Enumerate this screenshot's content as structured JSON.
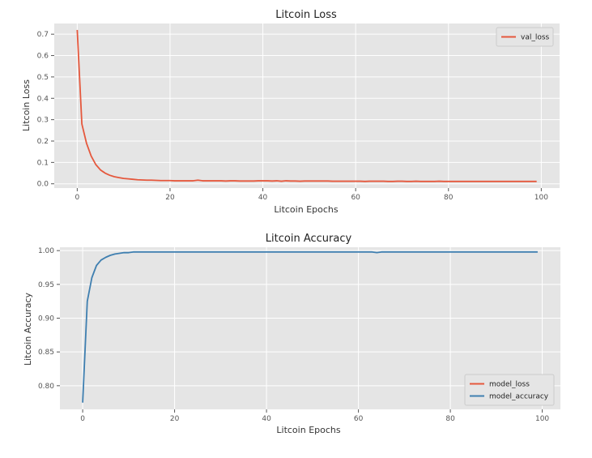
{
  "chart_data": [
    {
      "type": "line",
      "title": "Litcoin Loss",
      "xlabel": "Litcoin Epochs",
      "ylabel": "Litcoin Loss",
      "xlim": [
        -4.95,
        103.95
      ],
      "ylim": [
        -0.02,
        0.75
      ],
      "xticks": [
        0,
        20,
        40,
        60,
        80,
        100
      ],
      "yticks": [
        0.0,
        0.1,
        0.2,
        0.3,
        0.4,
        0.5,
        0.6,
        0.7
      ],
      "ytick_decimals": 1,
      "grid": true,
      "legend_position": "top-right",
      "series": [
        {
          "name": "val_loss",
          "color": "#e5583d",
          "x_start": 0,
          "values": [
            0.72,
            0.28,
            0.19,
            0.13,
            0.09,
            0.065,
            0.05,
            0.04,
            0.033,
            0.029,
            0.025,
            0.023,
            0.021,
            0.019,
            0.018,
            0.017,
            0.017,
            0.016,
            0.015,
            0.015,
            0.015,
            0.014,
            0.014,
            0.014,
            0.014,
            0.014,
            0.017,
            0.014,
            0.014,
            0.014,
            0.014,
            0.014,
            0.013,
            0.014,
            0.014,
            0.013,
            0.013,
            0.013,
            0.013,
            0.014,
            0.014,
            0.014,
            0.013,
            0.014,
            0.012,
            0.014,
            0.013,
            0.013,
            0.012,
            0.013,
            0.013,
            0.013,
            0.013,
            0.013,
            0.013,
            0.012,
            0.012,
            0.012,
            0.012,
            0.012,
            0.012,
            0.012,
            0.011,
            0.012,
            0.012,
            0.012,
            0.012,
            0.011,
            0.011,
            0.012,
            0.012,
            0.011,
            0.011,
            0.012,
            0.011,
            0.011,
            0.011,
            0.011,
            0.012,
            0.011,
            0.011,
            0.011,
            0.011,
            0.011,
            0.011,
            0.011,
            0.011,
            0.011,
            0.011,
            0.011,
            0.011,
            0.011,
            0.011,
            0.011,
            0.011,
            0.011,
            0.011,
            0.011,
            0.011,
            0.011
          ]
        }
      ]
    },
    {
      "type": "line",
      "title": "Litcoin Accuracy",
      "xlabel": "Litcoin Epochs",
      "ylabel": "Litcoin Accuracy",
      "xlim": [
        -4.95,
        103.95
      ],
      "ylim": [
        0.765,
        1.005
      ],
      "xticks": [
        0,
        20,
        40,
        60,
        80,
        100
      ],
      "yticks": [
        0.8,
        0.85,
        0.9,
        0.95,
        1.0
      ],
      "ytick_decimals": 2,
      "grid": true,
      "legend_position": "bottom-right",
      "series": [
        {
          "name": "model_loss",
          "color": "#e5583d",
          "x_start": 0,
          "values": []
        },
        {
          "name": "model_accuracy",
          "color": "#3f7fb0",
          "x_start": 0,
          "values": [
            0.775,
            0.925,
            0.96,
            0.978,
            0.986,
            0.99,
            0.993,
            0.995,
            0.996,
            0.997,
            0.997,
            0.998,
            0.998,
            0.998,
            0.998,
            0.998,
            0.998,
            0.998,
            0.998,
            0.998,
            0.998,
            0.998,
            0.998,
            0.998,
            0.998,
            0.998,
            0.998,
            0.998,
            0.998,
            0.998,
            0.998,
            0.998,
            0.998,
            0.998,
            0.998,
            0.998,
            0.998,
            0.998,
            0.998,
            0.998,
            0.998,
            0.998,
            0.998,
            0.998,
            0.998,
            0.998,
            0.998,
            0.998,
            0.998,
            0.998,
            0.998,
            0.998,
            0.998,
            0.998,
            0.998,
            0.998,
            0.998,
            0.998,
            0.998,
            0.998,
            0.998,
            0.998,
            0.998,
            0.998,
            0.997,
            0.998,
            0.998,
            0.998,
            0.998,
            0.998,
            0.998,
            0.998,
            0.998,
            0.998,
            0.998,
            0.998,
            0.998,
            0.998,
            0.998,
            0.998,
            0.998,
            0.998,
            0.998,
            0.998,
            0.998,
            0.998,
            0.998,
            0.998,
            0.998,
            0.998,
            0.998,
            0.998,
            0.998,
            0.998,
            0.998,
            0.998,
            0.998,
            0.998,
            0.998,
            0.998
          ]
        }
      ]
    }
  ]
}
